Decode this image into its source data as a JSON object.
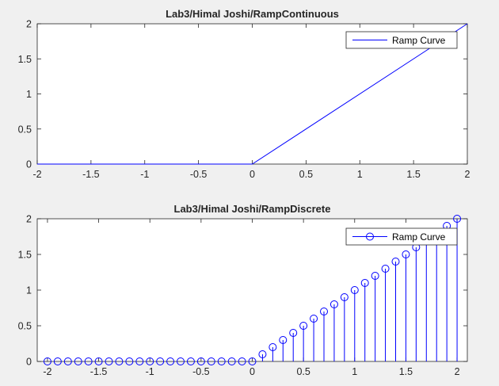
{
  "chart_data": [
    {
      "type": "line",
      "title": "Lab3/Himal Joshi/RampContinuous",
      "xlim": [
        -2,
        2
      ],
      "ylim": [
        0,
        2
      ],
      "xticks": [
        "-2",
        "-1.5",
        "-1",
        "-0.5",
        "0",
        "0.5",
        "1",
        "1.5",
        "2"
      ],
      "yticks": [
        "0",
        "0.5",
        "1",
        "1.5",
        "2"
      ],
      "grid": false,
      "legend_position": "top-right",
      "color": "#0000ff",
      "series": [
        {
          "name": "Ramp Curve",
          "x": [
            -2,
            0,
            2
          ],
          "y": [
            0,
            0,
            2
          ]
        }
      ]
    },
    {
      "type": "stem",
      "title": "Lab3/Himal Joshi/RampDiscrete",
      "xlim": [
        -2.1,
        2.1
      ],
      "ylim": [
        0,
        2
      ],
      "xticks": [
        "-2",
        "-1.5",
        "-1",
        "-0.5",
        "0",
        "0.5",
        "1",
        "1.5",
        "2"
      ],
      "yticks": [
        "0",
        "0.5",
        "1",
        "1.5",
        "2"
      ],
      "grid": false,
      "legend_position": "top-right",
      "color": "#0000ff",
      "series": [
        {
          "name": "Ramp Curve",
          "x": [
            -2,
            -1.9,
            -1.8,
            -1.7,
            -1.6,
            -1.5,
            -1.4,
            -1.3,
            -1.2,
            -1.1,
            -1,
            -0.9,
            -0.8,
            -0.7,
            -0.6,
            -0.5,
            -0.4,
            -0.3,
            -0.2,
            -0.1,
            0,
            0.1,
            0.2,
            0.3,
            0.4,
            0.5,
            0.6,
            0.7,
            0.8,
            0.9,
            1,
            1.1,
            1.2,
            1.3,
            1.4,
            1.5,
            1.6,
            1.7,
            1.8,
            1.9,
            2
          ],
          "y": [
            0,
            0,
            0,
            0,
            0,
            0,
            0,
            0,
            0,
            0,
            0,
            0,
            0,
            0,
            0,
            0,
            0,
            0,
            0,
            0,
            0,
            0.1,
            0.2,
            0.3,
            0.4,
            0.5,
            0.6,
            0.7,
            0.8,
            0.9,
            1,
            1.1,
            1.2,
            1.3,
            1.4,
            1.5,
            1.6,
            1.7,
            1.8,
            1.9,
            2
          ]
        }
      ]
    }
  ]
}
